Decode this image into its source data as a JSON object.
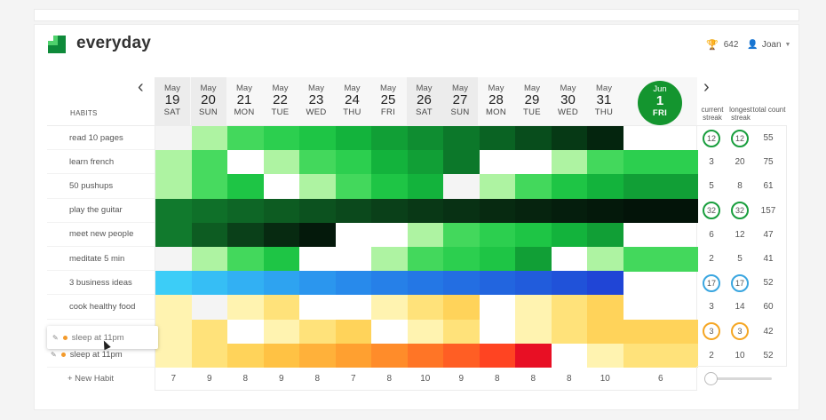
{
  "app": {
    "name": "everyday"
  },
  "user": {
    "points": "642",
    "name": "Joan"
  },
  "header": {
    "habits_label": "HABITS",
    "current_streak": "current streak",
    "longest_streak": "longest streak",
    "total_count": "total count"
  },
  "dates": [
    {
      "mon": "May",
      "day": "19",
      "dow": "SAT"
    },
    {
      "mon": "May",
      "day": "20",
      "dow": "SUN"
    },
    {
      "mon": "May",
      "day": "21",
      "dow": "MON"
    },
    {
      "mon": "May",
      "day": "22",
      "dow": "TUE"
    },
    {
      "mon": "May",
      "day": "23",
      "dow": "WED"
    },
    {
      "mon": "May",
      "day": "24",
      "dow": "THU"
    },
    {
      "mon": "May",
      "day": "25",
      "dow": "FRI"
    },
    {
      "mon": "May",
      "day": "26",
      "dow": "SAT"
    },
    {
      "mon": "May",
      "day": "27",
      "dow": "SUN"
    },
    {
      "mon": "May",
      "day": "28",
      "dow": "MON"
    },
    {
      "mon": "May",
      "day": "29",
      "dow": "TUE"
    },
    {
      "mon": "May",
      "day": "30",
      "dow": "WED"
    },
    {
      "mon": "May",
      "day": "31",
      "dow": "THU"
    }
  ],
  "today": {
    "mon": "Jun",
    "day": "1",
    "dow": "FRI"
  },
  "habits": [
    {
      "name": "read 10 pages",
      "current": "12",
      "longest": "12",
      "total": "55",
      "ring": "#1a9e3e"
    },
    {
      "name": "learn french",
      "current": "3",
      "longest": "20",
      "total": "75",
      "ring": ""
    },
    {
      "name": "50 pushups",
      "current": "5",
      "longest": "8",
      "total": "61",
      "ring": ""
    },
    {
      "name": "play the guitar",
      "current": "32",
      "longest": "32",
      "total": "157",
      "ring": "#1a9e3e"
    },
    {
      "name": "meet new people",
      "current": "6",
      "longest": "12",
      "total": "47",
      "ring": ""
    },
    {
      "name": "meditate 5 min",
      "current": "2",
      "longest": "5",
      "total": "41",
      "ring": ""
    },
    {
      "name": "3 business ideas",
      "current": "17",
      "longest": "17",
      "total": "52",
      "ring": "#3aa6e0"
    },
    {
      "name": "cook healthy food",
      "current": "3",
      "longest": "14",
      "total": "60",
      "ring": ""
    },
    {
      "name": "sleep at 11pm",
      "current": "3",
      "longest": "3",
      "total": "42",
      "ring": "#f5a623"
    },
    {
      "name": "sleep at 11pm",
      "current": "2",
      "longest": "10",
      "total": "52",
      "ring": ""
    }
  ],
  "drag_label": "sleep at 11pm",
  "grid_colors": [
    [
      "#f4f4f4",
      "#aef3a2",
      "#43d85c",
      "#2ccf4f",
      "#1ec545",
      "#13b33c",
      "#119f36",
      "#0f8d31",
      "#0c782a",
      "#0a6323",
      "#084d1c",
      "#063915",
      "#04250e",
      "",
      ""
    ],
    [
      "#aef3a2",
      "#47da5f",
      "#ffffff",
      "#aef3a2",
      "#43d85c",
      "#2ccf4f",
      "#13b33c",
      "#119f36",
      "#0c782a",
      "#ffffff",
      "#ffffff",
      "#aef3a2",
      "#43d85c",
      "#2ccf4f",
      "#2ccf4f"
    ],
    [
      "#aef3a2",
      "#47da5f",
      "#1ec545",
      "#ffffff",
      "#aef3a2",
      "#43d85c",
      "#1ec545",
      "#13b33c",
      "#f4f4f4",
      "#aef3a2",
      "#43d85c",
      "#1ec545",
      "#13b33c",
      "#119f36",
      "#119f36"
    ],
    [
      "#117a2d",
      "#0f7029",
      "#0e6626",
      "#0d5c22",
      "#0c521f",
      "#0b491c",
      "#0a4019",
      "#093816",
      "#083114",
      "#072a11",
      "#06240f",
      "#051e0d",
      "#04190b",
      "#031409",
      "#031409"
    ],
    [
      "#117a2d",
      "#0d5c22",
      "#0a4019",
      "#072a11",
      "#04190b",
      "#ffffff",
      "#ffffff",
      "#aef3a2",
      "#43d85c",
      "#2ccf4f",
      "#1ec545",
      "#13b33c",
      "#119f36",
      "",
      ""
    ],
    [
      "#f4f4f4",
      "#aef3a2",
      "#43d85c",
      "#1ec545",
      "#ffffff",
      "#ffffff",
      "#aef3a2",
      "#43d85c",
      "#2ccf4f",
      "#1ec545",
      "#119f36",
      "#ffffff",
      "#aef3a2",
      "#43d85c",
      "#43d85c"
    ],
    [
      "#3ccdf7",
      "#36bef5",
      "#32b0f3",
      "#2ea3f0",
      "#2b96ee",
      "#288aeb",
      "#2680e8",
      "#2477e5",
      "#236ee2",
      "#2265df",
      "#215cdc",
      "#2052d9",
      "#2045d6",
      "",
      ""
    ],
    [
      "#fff3b0",
      "#f4f4f4",
      "#fff3b0",
      "#ffe27a",
      "#ffffff",
      "#ffffff",
      "#fff3b0",
      "#ffe27a",
      "#ffd35a",
      "#ffffff",
      "#fff3b0",
      "#ffe27a",
      "#ffd35a",
      "",
      ""
    ],
    [
      "#fff3b0",
      "#ffe27a",
      "#ffffff",
      "#fff3b0",
      "#ffe27a",
      "#ffd35a",
      "#ffffff",
      "#fff3b0",
      "#ffe27a",
      "#ffffff",
      "#fff3b0",
      "#ffe27a",
      "#ffd35a",
      "#ffd35a",
      "#ffd35a"
    ],
    [
      "#fff3b0",
      "#ffe27a",
      "#ffd35a",
      "#ffc244",
      "#ffb13a",
      "#ffa030",
      "#ff8c2a",
      "#ff7526",
      "#ff5e24",
      "#ff4422",
      "#e80f24",
      "#ffffff",
      "#fff3b0",
      "#ffe27a",
      "#ffe27a"
    ]
  ],
  "totals": [
    "7",
    "9",
    "8",
    "9",
    "8",
    "7",
    "8",
    "10",
    "9",
    "8",
    "8",
    "8",
    "10",
    "6"
  ],
  "new_habit_label": "+ New Habit",
  "icons": {
    "trophy": "trophy-icon",
    "user": "user-icon",
    "prev": "chevron-left-icon",
    "next": "chevron-right-icon",
    "pencil": "pencil-icon"
  }
}
